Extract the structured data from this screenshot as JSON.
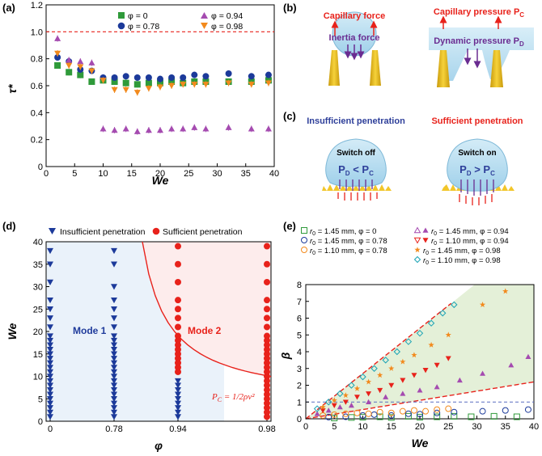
{
  "panels": {
    "a": "(a)",
    "b": "(b)",
    "c": "(c)",
    "d": "(d)",
    "e": "(e)"
  },
  "colors": {
    "green": "#2f9a3a",
    "blue": "#1c3a9a",
    "purple": "#a54bb0",
    "orange": "#f28a1d",
    "red": "#e8221b",
    "cyan": "#1aa3b5",
    "darkred": "#c8102e"
  },
  "schematic": {
    "b_left_top": "Capillary force",
    "b_left_bottom": "Inertia force",
    "b_right_top": "Capillary pressure P",
    "b_right_top_sub": "C",
    "b_right_bottom": "Dynamic pressure P",
    "b_right_bottom_sub": "D",
    "c_left_title": "Insufficient penetration",
    "c_right_title": "Sufficient penetration",
    "c_left_switch": "Switch off",
    "c_right_switch": "Switch on",
    "c_left_rel": "P",
    "c_left_rel_sub1": "D",
    "c_left_op": " < P",
    "c_left_rel_sub2": "C",
    "c_right_rel": "P",
    "c_right_rel_sub1": "D",
    "c_right_op": " > P",
    "c_right_rel_sub2": "C"
  },
  "chart_data": [
    {
      "panel": "a",
      "type": "scatter",
      "xlabel": "We",
      "ylabel": "τ*",
      "xlim": [
        0,
        40
      ],
      "ylim": [
        0,
        1.2
      ],
      "xticks": [
        "0",
        "5",
        "10",
        "15",
        "20",
        "25",
        "30",
        "35",
        "40"
      ],
      "yticks": [
        "0",
        "0.2",
        "0.4",
        "0.6",
        "0.8",
        "1.0",
        "1.2"
      ],
      "reference_line": 1.0,
      "legend": [
        "φ = 0",
        "φ = 0.78",
        "φ = 0.94",
        "φ = 0.98"
      ],
      "series": [
        {
          "name": "φ = 0",
          "marker": "square",
          "color": "#2f9a3a",
          "x": [
            2,
            4,
            6,
            8,
            10,
            12,
            14,
            16,
            18,
            20,
            22,
            24,
            26,
            28,
            32,
            36,
            39
          ],
          "y": [
            0.75,
            0.7,
            0.68,
            0.63,
            0.64,
            0.63,
            0.62,
            0.61,
            0.62,
            0.62,
            0.63,
            0.62,
            0.63,
            0.63,
            0.63,
            0.63,
            0.64
          ]
        },
        {
          "name": "φ = 0.78",
          "marker": "circle",
          "color": "#1c3a9a",
          "x": [
            2,
            4,
            6,
            8,
            10,
            12,
            14,
            16,
            18,
            20,
            22,
            24,
            26,
            28,
            32,
            36,
            39
          ],
          "y": [
            0.81,
            0.78,
            0.72,
            0.71,
            0.66,
            0.66,
            0.67,
            0.66,
            0.66,
            0.65,
            0.66,
            0.66,
            0.68,
            0.67,
            0.69,
            0.67,
            0.68
          ]
        },
        {
          "name": "φ = 0.94",
          "marker": "triangle-up",
          "color": "#a54bb0",
          "x": [
            2,
            4,
            6,
            8,
            10,
            12,
            14,
            16,
            18,
            20,
            22,
            24,
            26,
            28,
            32,
            36,
            39
          ],
          "y": [
            0.95,
            0.79,
            0.78,
            0.77,
            0.28,
            0.27,
            0.28,
            0.26,
            0.27,
            0.27,
            0.28,
            0.28,
            0.29,
            0.28,
            0.29,
            0.28,
            0.28
          ]
        },
        {
          "name": "φ = 0.98",
          "marker": "triangle-down",
          "color": "#f28a1d",
          "x": [
            2,
            4,
            6,
            8,
            10,
            12,
            14,
            16,
            18,
            20,
            22,
            24,
            26,
            28,
            32,
            36,
            39
          ],
          "y": [
            0.84,
            0.75,
            0.74,
            0.71,
            0.64,
            0.57,
            0.57,
            0.55,
            0.58,
            0.59,
            0.6,
            0.61,
            0.61,
            0.61,
            0.62,
            0.61,
            0.62
          ]
        }
      ]
    },
    {
      "panel": "d",
      "type": "scatter",
      "xlabel": "φ",
      "ylabel": "We",
      "xticks": [
        "0",
        "0.78",
        "0.94",
        "0.98"
      ],
      "xtick_values": [
        0,
        0.78,
        0.94,
        0.98
      ],
      "yticks": [
        "0",
        "5",
        "10",
        "15",
        "20",
        "25",
        "30",
        "35",
        "40"
      ],
      "ylim": [
        0,
        40
      ],
      "legend": [
        "Insufficient penetration",
        "Sufficient penetration"
      ],
      "mode_labels": [
        "Mode 1",
        "Mode 2"
      ],
      "curve_label": "P_C = 1/2ρv²",
      "curve_label_main": "P",
      "curve_label_sub": "C",
      "curve_label_rest": " = 1/2ρv²",
      "series": [
        {
          "name": "Insufficient penetration",
          "marker": "triangle-down",
          "color": "#1c3a9a",
          "points": [
            [
              0,
              1
            ],
            [
              0,
              2
            ],
            [
              0,
              3
            ],
            [
              0,
              4
            ],
            [
              0,
              5
            ],
            [
              0,
              6
            ],
            [
              0,
              7
            ],
            [
              0,
              8
            ],
            [
              0,
              9
            ],
            [
              0,
              10
            ],
            [
              0,
              11
            ],
            [
              0,
              12
            ],
            [
              0,
              13
            ],
            [
              0,
              14
            ],
            [
              0,
              15
            ],
            [
              0,
              16
            ],
            [
              0,
              17
            ],
            [
              0,
              18
            ],
            [
              0,
              19
            ],
            [
              0,
              21
            ],
            [
              0,
              23
            ],
            [
              0,
              25
            ],
            [
              0,
              27
            ],
            [
              0,
              31
            ],
            [
              0,
              35
            ],
            [
              0,
              38
            ],
            [
              0.78,
              1
            ],
            [
              0.78,
              2
            ],
            [
              0.78,
              3
            ],
            [
              0.78,
              4
            ],
            [
              0.78,
              5
            ],
            [
              0.78,
              6
            ],
            [
              0.78,
              7
            ],
            [
              0.78,
              8
            ],
            [
              0.78,
              9
            ],
            [
              0.78,
              10
            ],
            [
              0.78,
              11
            ],
            [
              0.78,
              12
            ],
            [
              0.78,
              13
            ],
            [
              0.78,
              14
            ],
            [
              0.78,
              15
            ],
            [
              0.78,
              16
            ],
            [
              0.78,
              17
            ],
            [
              0.78,
              18
            ],
            [
              0.78,
              19
            ],
            [
              0.78,
              21
            ],
            [
              0.78,
              23
            ],
            [
              0.78,
              25
            ],
            [
              0.78,
              27
            ],
            [
              0.78,
              30
            ],
            [
              0.78,
              35
            ],
            [
              0.78,
              38
            ],
            [
              0.94,
              1
            ],
            [
              0.94,
              2
            ],
            [
              0.94,
              3
            ],
            [
              0.94,
              4
            ],
            [
              0.94,
              5
            ],
            [
              0.94,
              6
            ],
            [
              0.94,
              7
            ],
            [
              0.94,
              8
            ],
            [
              0.94,
              9
            ]
          ]
        },
        {
          "name": "Sufficient penetration",
          "marker": "circle",
          "color": "#e8221b",
          "points": [
            [
              0.94,
              11
            ],
            [
              0.94,
              12
            ],
            [
              0.94,
              13
            ],
            [
              0.94,
              14
            ],
            [
              0.94,
              15
            ],
            [
              0.94,
              16
            ],
            [
              0.94,
              17
            ],
            [
              0.94,
              18
            ],
            [
              0.94,
              19
            ],
            [
              0.94,
              21
            ],
            [
              0.94,
              23
            ],
            [
              0.94,
              25
            ],
            [
              0.94,
              27
            ],
            [
              0.94,
              31
            ],
            [
              0.94,
              35
            ],
            [
              0.94,
              39
            ],
            [
              0.98,
              1
            ],
            [
              0.98,
              2
            ],
            [
              0.98,
              3
            ],
            [
              0.98,
              4
            ],
            [
              0.98,
              5
            ],
            [
              0.98,
              6
            ],
            [
              0.98,
              7
            ],
            [
              0.98,
              8
            ],
            [
              0.98,
              9
            ],
            [
              0.98,
              10
            ],
            [
              0.98,
              11
            ],
            [
              0.98,
              12
            ],
            [
              0.98,
              13
            ],
            [
              0.98,
              14
            ],
            [
              0.98,
              15
            ],
            [
              0.98,
              16
            ],
            [
              0.98,
              17
            ],
            [
              0.98,
              18
            ],
            [
              0.98,
              19
            ],
            [
              0.98,
              21
            ],
            [
              0.98,
              23
            ],
            [
              0.98,
              25
            ],
            [
              0.98,
              27
            ],
            [
              0.98,
              31
            ],
            [
              0.98,
              35
            ],
            [
              0.98,
              39
            ]
          ]
        }
      ]
    },
    {
      "panel": "e",
      "type": "scatter",
      "xlabel": "We",
      "ylabel": "β",
      "xlim": [
        0,
        40
      ],
      "ylim": [
        0,
        8
      ],
      "xticks": [
        "0",
        "5",
        "10",
        "15",
        "20",
        "25",
        "30",
        "35",
        "40"
      ],
      "yticks": [
        "0",
        "1",
        "2",
        "3",
        "4",
        "5",
        "6",
        "7",
        "8"
      ],
      "reference_line": 1,
      "legend": [
        {
          "r": "r",
          "r_sub": "0",
          "text": " = 1.45 mm, φ = 0"
        },
        {
          "r": "r",
          "r_sub": "0",
          "text": " = 1.45 mm, φ = 0.78"
        },
        {
          "r": "r",
          "r_sub": "0",
          "text": " = 1.10 mm, φ = 0.78"
        },
        {
          "r": "r",
          "r_sub": "0",
          "text": " = 1.45 mm, φ = 0.94"
        },
        {
          "r": "r",
          "r_sub": "0",
          "text": " = 1.10 mm, φ = 0.94"
        },
        {
          "r": "r",
          "r_sub": "0",
          "text": " = 1.45 mm, φ = 0.98"
        },
        {
          "r": "r",
          "r_sub": "0",
          "text": " = 1.10 mm, φ = 0.98"
        }
      ],
      "series": [
        {
          "name": "r0 = 1.45 mm, φ = 0",
          "marker": "square-open",
          "color": "#2f9a3a",
          "x": [
            5,
            8,
            10,
            13,
            15,
            18,
            20,
            23,
            26,
            29,
            33,
            37
          ],
          "y": [
            0.05,
            0.08,
            0.1,
            0.12,
            0.08,
            0.15,
            0.1,
            0.12,
            0.15,
            0.12,
            0.15,
            0.12
          ]
        },
        {
          "name": "r0 = 1.45 mm, φ = 0.78",
          "marker": "circle-open",
          "color": "#1c3a9a",
          "x": [
            4,
            7,
            10,
            12,
            15,
            18,
            20,
            23,
            26,
            31,
            35,
            39
          ],
          "y": [
            0.1,
            0.12,
            0.2,
            0.25,
            0.2,
            0.3,
            0.28,
            0.35,
            0.4,
            0.45,
            0.5,
            0.55
          ]
        },
        {
          "name": "r0 = 1.10 mm, φ = 0.78",
          "marker": "circle-open",
          "color": "#f28a1d",
          "x": [
            3,
            5,
            7,
            9,
            11,
            13,
            15,
            17,
            19,
            21,
            23,
            25
          ],
          "y": [
            0.2,
            0.25,
            0.3,
            0.35,
            0.3,
            0.4,
            0.35,
            0.45,
            0.5,
            0.45,
            0.55,
            0.6
          ]
        },
        {
          "name": "r0 = 1.45 mm, φ = 0.94",
          "marker": "triangle-up",
          "color": "#a54bb0",
          "x": [
            2,
            4,
            6,
            8,
            11,
            14,
            17,
            20,
            23,
            27,
            31,
            36,
            39
          ],
          "y": [
            0.3,
            0.5,
            0.7,
            0.8,
            1.0,
            1.3,
            1.5,
            1.7,
            1.9,
            2.3,
            2.7,
            3.2,
            3.7
          ]
        },
        {
          "name": "r0 = 1.10 mm, φ = 0.94",
          "marker": "triangle-down",
          "color": "#e8221b",
          "x": [
            3,
            5,
            7,
            9,
            11,
            13,
            15,
            17,
            19,
            21,
            23,
            25
          ],
          "y": [
            0.5,
            0.8,
            1.0,
            1.3,
            1.5,
            1.7,
            2.0,
            2.3,
            2.6,
            2.9,
            3.2,
            3.6
          ]
        },
        {
          "name": "r0 = 1.45 mm, φ = 0.98",
          "marker": "star",
          "color": "#f28a1d",
          "x": [
            3,
            5,
            7,
            9,
            11,
            13,
            15,
            17,
            19,
            22,
            25,
            31,
            35
          ],
          "y": [
            0.7,
            1.1,
            1.4,
            1.8,
            2.2,
            2.6,
            3.0,
            3.4,
            3.8,
            4.4,
            5.0,
            6.8,
            7.6
          ]
        },
        {
          "name": "r0 = 1.10 mm, φ = 0.98",
          "marker": "diamond-open",
          "color": "#1aa3b5",
          "x": [
            2,
            4,
            6,
            8,
            10,
            12,
            14,
            16,
            18,
            20,
            22,
            24,
            26
          ],
          "y": [
            0.6,
            1.0,
            1.5,
            2.0,
            2.5,
            3.0,
            3.5,
            4.0,
            4.6,
            5.1,
            5.7,
            6.3,
            6.8
          ]
        }
      ]
    }
  ]
}
